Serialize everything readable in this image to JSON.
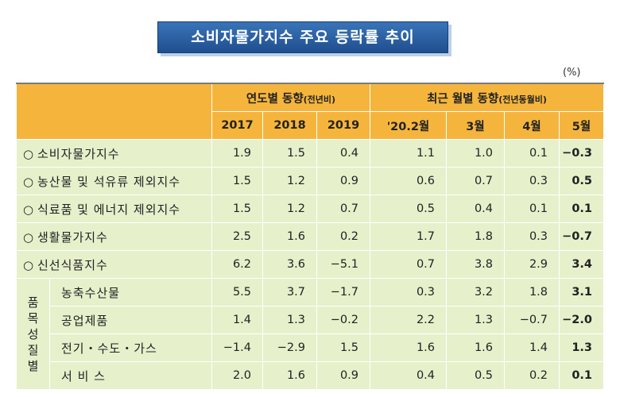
{
  "title": "소비자물가지수 주요 등락률 추이",
  "unit": "(%)",
  "header": {
    "group1": "연도별 동향",
    "group1_note": "(전년비)",
    "group2": "최근 월별 동향",
    "group2_note": "(전년동월비)",
    "columns": [
      "2017",
      "2018",
      "2019",
      "'20.2월",
      "3월",
      "4월",
      "5월"
    ]
  },
  "side_label": [
    "품",
    "목",
    "성",
    "질",
    "별"
  ],
  "rows": [
    {
      "marker": "○",
      "label": "소비자물가지수",
      "values": [
        "1.9",
        "1.5",
        "0.4",
        "1.1",
        "1.0",
        "0.1",
        "−0.3"
      ]
    },
    {
      "marker": "○",
      "label": "농산물 및 석유류 제외지수",
      "values": [
        "1.5",
        "1.2",
        "0.9",
        "0.6",
        "0.7",
        "0.3",
        "0.5"
      ]
    },
    {
      "marker": "○",
      "label": "식료품 및 에너지 제외지수",
      "values": [
        "1.5",
        "1.2",
        "0.7",
        "0.5",
        "0.4",
        "0.1",
        "0.1"
      ]
    },
    {
      "marker": "○",
      "label": "생활물가지수",
      "values": [
        "2.5",
        "1.6",
        "0.2",
        "1.7",
        "1.8",
        "0.3",
        "−0.7"
      ]
    },
    {
      "marker": "○",
      "label": "신선식품지수",
      "values": [
        "6.2",
        "3.6",
        "−5.1",
        "0.7",
        "3.8",
        "2.9",
        "3.4"
      ]
    }
  ],
  "sub_rows": [
    {
      "label": "농축수산물",
      "values": [
        "5.5",
        "3.7",
        "−1.7",
        "0.3",
        "3.2",
        "1.8",
        "3.1"
      ]
    },
    {
      "label": "공업제품",
      "values": [
        "1.4",
        "1.3",
        "−0.2",
        "2.2",
        "1.3",
        "−0.7",
        "−2.0"
      ]
    },
    {
      "label": "전기・수도・가스",
      "values": [
        "−1.4",
        "−2.9",
        "1.5",
        "1.6",
        "1.6",
        "1.4",
        "1.3"
      ]
    },
    {
      "label": "서 비 스",
      "values": [
        "2.0",
        "1.6",
        "0.9",
        "0.4",
        "0.5",
        "0.2",
        "0.1"
      ]
    }
  ]
}
